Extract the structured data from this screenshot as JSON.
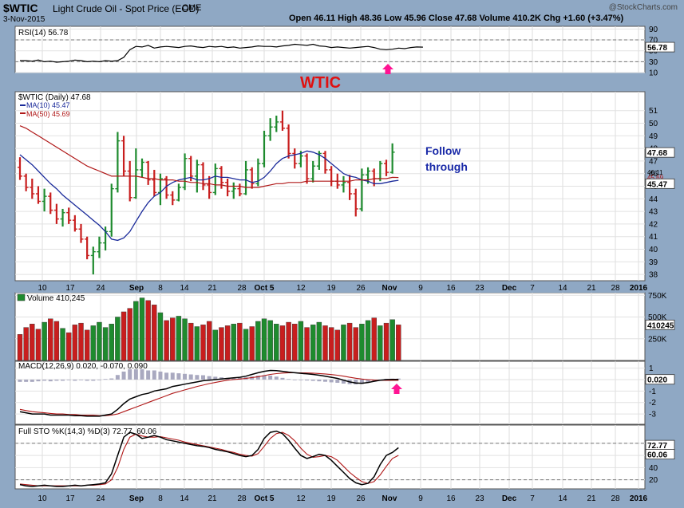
{
  "header": {
    "symbol": "$WTIC",
    "name": "Light Crude Oil - Spot Price (EOD)",
    "exchange": "CME",
    "date": "3-Nov-2015",
    "ohlc_line": "Open 46.11   High 48.36   Low 45.96   Close 47.68   Volume 410.2K   Chg +1.60 (+3.47%)",
    "credit": "@StockCharts.com"
  },
  "colors": {
    "background": "#8fa8c4",
    "panel": "#ffffff",
    "up": "#1e8b2e",
    "down": "#c81e1e",
    "ma10": "#1a2a9a",
    "ma50": "#b01818",
    "annotation_red": "#e01010",
    "annotation_blue": "#1a2aa8",
    "arrow": "#ff1493"
  },
  "annotations": {
    "title": "WTIC",
    "note_line1": "Follow",
    "note_line2": "through"
  },
  "chart_data": [
    {
      "id": "rsi",
      "type": "line",
      "label": "RSI(14) 56.78",
      "ylim": [
        10,
        95
      ],
      "ticks": [
        90,
        70,
        50,
        30,
        10
      ],
      "reference_lines": [
        70,
        30
      ],
      "last_value_label": "56.78",
      "values": [
        32,
        32,
        31,
        33,
        30,
        31,
        29,
        30,
        31,
        33,
        32,
        30,
        31,
        30,
        32,
        31,
        32,
        38,
        52,
        58,
        57,
        60,
        55,
        57,
        58,
        57,
        56,
        58,
        59,
        57,
        56,
        58,
        57,
        58,
        56,
        57,
        55,
        56,
        57,
        59,
        58,
        58,
        57,
        59,
        60,
        62,
        61,
        60,
        62,
        59,
        58,
        56,
        57,
        56,
        55,
        56,
        57,
        58,
        56,
        53,
        52,
        53,
        55,
        54,
        56,
        57,
        56.78
      ]
    },
    {
      "id": "price",
      "type": "ohlc",
      "label": "$WTIC (Daily) 47.68",
      "ylim": [
        37.5,
        52.5
      ],
      "ticks": [
        51,
        50,
        49,
        48,
        47,
        46,
        45,
        44,
        43,
        42,
        41,
        40,
        39,
        38
      ],
      "price_labels": [
        "47.68",
        "46.11",
        "45.69",
        "45.47"
      ],
      "series": [
        {
          "name": "MA(10) 45.47",
          "values": [
            47.5,
            47.1,
            46.7,
            46.2,
            45.7,
            45.2,
            44.8,
            44.3,
            43.9,
            43.5,
            43.1,
            42.7,
            42.3,
            41.9,
            41.4,
            40.8,
            40.7,
            40.9,
            41.4,
            42.2,
            43.0,
            43.7,
            44.2,
            44.5,
            45.0,
            45.3,
            45.5,
            45.6,
            45.7,
            45.5,
            45.5,
            45.6,
            45.8,
            45.7,
            45.7,
            45.6,
            45.5,
            45.5,
            45.3,
            45.4,
            45.7,
            46.2,
            46.8,
            47.2,
            47.4,
            47.5,
            47.6,
            47.8,
            47.7,
            47.5,
            47.2,
            46.8,
            46.4,
            46.0,
            45.8,
            45.7,
            45.5,
            45.4,
            45.2,
            45.2,
            45.3,
            45.4,
            45.47
          ]
        },
        {
          "name": "MA(50) 45.69",
          "values": [
            49.8,
            49.6,
            49.3,
            49.0,
            48.7,
            48.4,
            48.1,
            47.8,
            47.5,
            47.2,
            46.9,
            46.6,
            46.4,
            46.2,
            46.0,
            45.8,
            45.8,
            45.8,
            45.8,
            45.8,
            45.7,
            45.6,
            45.6,
            45.5,
            45.5,
            45.5,
            45.4,
            45.4,
            45.3,
            45.3,
            45.2,
            45.2,
            45.1,
            45.1,
            45.0,
            45.0,
            45.0,
            44.9,
            44.9,
            44.9,
            45.0,
            45.1,
            45.2,
            45.2,
            45.3,
            45.3,
            45.3,
            45.4,
            45.4,
            45.4,
            45.4,
            45.4,
            45.4,
            45.4,
            45.4,
            45.5,
            45.5,
            45.5,
            45.6,
            45.6,
            45.6,
            45.7,
            45.69
          ]
        }
      ],
      "bars": [
        {
          "o": 46.5,
          "h": 47.3,
          "l": 45.5,
          "c": 45.8
        },
        {
          "o": 45.8,
          "h": 46.0,
          "l": 44.6,
          "c": 44.9
        },
        {
          "o": 44.9,
          "h": 45.6,
          "l": 44.0,
          "c": 44.4
        },
        {
          "o": 44.4,
          "h": 45.0,
          "l": 43.6,
          "c": 43.8
        },
        {
          "o": 43.8,
          "h": 44.8,
          "l": 43.0,
          "c": 44.2
        },
        {
          "o": 44.2,
          "h": 44.5,
          "l": 42.8,
          "c": 43.1
        },
        {
          "o": 43.1,
          "h": 43.6,
          "l": 42.0,
          "c": 42.4
        },
        {
          "o": 42.4,
          "h": 43.2,
          "l": 41.8,
          "c": 42.9
        },
        {
          "o": 42.9,
          "h": 43.3,
          "l": 42.0,
          "c": 42.3
        },
        {
          "o": 42.3,
          "h": 42.7,
          "l": 41.4,
          "c": 41.6
        },
        {
          "o": 41.6,
          "h": 42.0,
          "l": 40.5,
          "c": 40.8
        },
        {
          "o": 40.8,
          "h": 41.0,
          "l": 39.2,
          "c": 39.5
        },
        {
          "o": 39.5,
          "h": 40.2,
          "l": 38.0,
          "c": 39.8
        },
        {
          "o": 39.8,
          "h": 41.0,
          "l": 39.3,
          "c": 40.5
        },
        {
          "o": 40.5,
          "h": 41.8,
          "l": 39.9,
          "c": 41.4
        },
        {
          "o": 41.4,
          "h": 45.2,
          "l": 41.0,
          "c": 44.8
        },
        {
          "o": 44.8,
          "h": 49.3,
          "l": 44.5,
          "c": 48.6
        },
        {
          "o": 48.6,
          "h": 49.0,
          "l": 45.8,
          "c": 46.2
        },
        {
          "o": 46.2,
          "h": 47.0,
          "l": 43.8,
          "c": 44.1
        },
        {
          "o": 44.1,
          "h": 48.0,
          "l": 44.0,
          "c": 46.3
        },
        {
          "o": 46.3,
          "h": 47.2,
          "l": 45.7,
          "c": 46.9
        },
        {
          "o": 46.9,
          "h": 47.0,
          "l": 45.1,
          "c": 45.5
        },
        {
          "o": 45.5,
          "h": 46.3,
          "l": 44.2,
          "c": 44.5
        },
        {
          "o": 44.5,
          "h": 46.0,
          "l": 43.5,
          "c": 45.6
        },
        {
          "o": 45.6,
          "h": 45.8,
          "l": 44.0,
          "c": 44.3
        },
        {
          "o": 44.3,
          "h": 44.6,
          "l": 43.5,
          "c": 43.9
        },
        {
          "o": 43.9,
          "h": 45.2,
          "l": 43.8,
          "c": 44.9
        },
        {
          "o": 44.9,
          "h": 47.6,
          "l": 44.7,
          "c": 47.2
        },
        {
          "o": 47.2,
          "h": 47.4,
          "l": 45.4,
          "c": 45.8
        },
        {
          "o": 45.8,
          "h": 47.1,
          "l": 44.5,
          "c": 46.7
        },
        {
          "o": 46.7,
          "h": 46.9,
          "l": 44.7,
          "c": 45.1
        },
        {
          "o": 45.1,
          "h": 45.8,
          "l": 44.0,
          "c": 44.5
        },
        {
          "o": 44.5,
          "h": 46.8,
          "l": 44.3,
          "c": 46.4
        },
        {
          "o": 46.4,
          "h": 46.6,
          "l": 44.8,
          "c": 45.3
        },
        {
          "o": 45.3,
          "h": 45.6,
          "l": 44.2,
          "c": 44.6
        },
        {
          "o": 44.6,
          "h": 45.3,
          "l": 44.0,
          "c": 44.8
        },
        {
          "o": 44.8,
          "h": 45.2,
          "l": 44.2,
          "c": 44.4
        },
        {
          "o": 44.4,
          "h": 47.0,
          "l": 44.3,
          "c": 46.3
        },
        {
          "o": 46.3,
          "h": 46.5,
          "l": 44.8,
          "c": 45.2
        },
        {
          "o": 45.2,
          "h": 47.2,
          "l": 45.0,
          "c": 46.8
        },
        {
          "o": 46.8,
          "h": 49.4,
          "l": 46.5,
          "c": 49.0
        },
        {
          "o": 49.0,
          "h": 50.4,
          "l": 48.6,
          "c": 49.7
        },
        {
          "o": 49.7,
          "h": 50.6,
          "l": 49.3,
          "c": 50.1
        },
        {
          "o": 50.1,
          "h": 51.0,
          "l": 49.4,
          "c": 49.6
        },
        {
          "o": 49.6,
          "h": 49.9,
          "l": 47.2,
          "c": 47.6
        },
        {
          "o": 47.6,
          "h": 48.0,
          "l": 46.4,
          "c": 46.8
        },
        {
          "o": 46.8,
          "h": 47.8,
          "l": 46.5,
          "c": 47.4
        },
        {
          "o": 47.4,
          "h": 47.6,
          "l": 45.2,
          "c": 45.6
        },
        {
          "o": 45.6,
          "h": 47.0,
          "l": 45.3,
          "c": 46.6
        },
        {
          "o": 46.6,
          "h": 47.8,
          "l": 46.3,
          "c": 47.6
        },
        {
          "o": 47.6,
          "h": 47.8,
          "l": 46.0,
          "c": 46.3
        },
        {
          "o": 46.3,
          "h": 46.6,
          "l": 45.0,
          "c": 45.4
        },
        {
          "o": 45.4,
          "h": 46.0,
          "l": 44.8,
          "c": 45.1
        },
        {
          "o": 45.1,
          "h": 45.8,
          "l": 44.5,
          "c": 45.3
        },
        {
          "o": 45.3,
          "h": 45.9,
          "l": 43.9,
          "c": 44.4
        },
        {
          "o": 44.4,
          "h": 44.8,
          "l": 42.6,
          "c": 43.2
        },
        {
          "o": 43.2,
          "h": 46.4,
          "l": 43.0,
          "c": 45.9
        },
        {
          "o": 45.9,
          "h": 46.5,
          "l": 45.2,
          "c": 46.2
        },
        {
          "o": 46.2,
          "h": 46.4,
          "l": 45.0,
          "c": 45.6
        },
        {
          "o": 45.6,
          "h": 47.0,
          "l": 45.4,
          "c": 46.8
        },
        {
          "o": 46.8,
          "h": 47.1,
          "l": 45.8,
          "c": 46.1
        },
        {
          "o": 46.1,
          "h": 48.4,
          "l": 46.0,
          "c": 47.7
        }
      ]
    },
    {
      "id": "volume",
      "type": "bar",
      "label": "Volume 410,245",
      "ylim": [
        0,
        780
      ],
      "ticks": [
        "750K",
        "500K",
        "250K"
      ],
      "last_value_label": "410245",
      "values": [
        300,
        380,
        420,
        360,
        440,
        480,
        450,
        370,
        320,
        410,
        430,
        350,
        400,
        440,
        380,
        420,
        500,
        560,
        600,
        680,
        720,
        690,
        640,
        550,
        460,
        490,
        510,
        480,
        430,
        390,
        410,
        450,
        350,
        380,
        400,
        420,
        430,
        360,
        390,
        450,
        480,
        460,
        420,
        400,
        440,
        420,
        450,
        380,
        410,
        440,
        400,
        380,
        350,
        410,
        430,
        380,
        420,
        460,
        490,
        400,
        430,
        470,
        410
      ]
    },
    {
      "id": "macd",
      "type": "line",
      "label": "MACD(12,26,9) 0.020, -0.070, 0.090",
      "ylim": [
        -3.9,
        1.6
      ],
      "ticks": [
        1,
        0,
        -1,
        -2,
        -3
      ],
      "last_value_label": "0.020",
      "series": [
        {
          "name": "MACD",
          "values": [
            -2.8,
            -2.9,
            -3.0,
            -3.0,
            -3.0,
            -3.1,
            -3.1,
            -3.1,
            -3.1,
            -3.15,
            -3.15,
            -3.2,
            -3.2,
            -3.2,
            -3.1,
            -3.0,
            -2.6,
            -2.1,
            -1.7,
            -1.5,
            -1.3,
            -1.2,
            -1.0,
            -0.9,
            -0.8,
            -0.6,
            -0.5,
            -0.4,
            -0.3,
            -0.2,
            -0.1,
            -0.05,
            0.0,
            0.05,
            0.1,
            0.15,
            0.2,
            0.3,
            0.45,
            0.6,
            0.72,
            0.8,
            0.78,
            0.72,
            0.65,
            0.6,
            0.55,
            0.5,
            0.45,
            0.38,
            0.3,
            0.2,
            0.1,
            -0.05,
            -0.2,
            -0.3,
            -0.32,
            -0.25,
            -0.15,
            -0.05,
            0.0,
            0.01,
            0.02
          ]
        },
        {
          "name": "Signal",
          "values": [
            -2.6,
            -2.7,
            -2.8,
            -2.85,
            -2.9,
            -2.95,
            -3.0,
            -3.0,
            -3.05,
            -3.05,
            -3.1,
            -3.1,
            -3.1,
            -3.15,
            -3.15,
            -3.1,
            -3.0,
            -2.8,
            -2.6,
            -2.4,
            -2.2,
            -2.0,
            -1.8,
            -1.6,
            -1.4,
            -1.2,
            -1.05,
            -0.9,
            -0.75,
            -0.6,
            -0.48,
            -0.35,
            -0.25,
            -0.15,
            -0.05,
            0.0,
            0.05,
            0.1,
            0.18,
            0.25,
            0.35,
            0.45,
            0.52,
            0.57,
            0.6,
            0.6,
            0.59,
            0.58,
            0.56,
            0.53,
            0.49,
            0.44,
            0.38,
            0.3,
            0.2,
            0.12,
            0.05,
            0.0,
            -0.04,
            -0.06,
            -0.07,
            -0.07,
            -0.07
          ]
        }
      ]
    },
    {
      "id": "sto",
      "type": "line",
      "label": "Full STO %K(14,3) %D(3) 72.77, 60.06",
      "ylim": [
        5,
        110
      ],
      "ticks": [
        80,
        60,
        40,
        20
      ],
      "reference_lines": [
        80,
        20
      ],
      "last_value_labels": [
        "72.77",
        "60.06"
      ],
      "series": [
        {
          "name": "%K",
          "values": [
            12,
            10,
            9,
            10,
            11,
            10,
            9,
            9,
            10,
            11,
            10,
            11,
            12,
            13,
            15,
            30,
            60,
            90,
            98,
            95,
            88,
            90,
            93,
            90,
            86,
            84,
            82,
            80,
            78,
            76,
            75,
            73,
            70,
            68,
            66,
            63,
            60,
            58,
            60,
            70,
            88,
            98,
            100,
            96,
            85,
            72,
            60,
            55,
            58,
            62,
            60,
            52,
            42,
            32,
            22,
            15,
            12,
            14,
            25,
            45,
            60,
            65,
            72.77
          ]
        },
        {
          "name": "%D",
          "values": [
            13,
            12,
            11,
            10,
            10,
            10,
            10,
            10,
            10,
            10,
            10,
            11,
            11,
            12,
            13,
            20,
            40,
            70,
            90,
            95,
            92,
            90,
            90,
            91,
            89,
            87,
            85,
            82,
            80,
            78,
            76,
            74,
            72,
            70,
            67,
            65,
            62,
            60,
            59,
            63,
            75,
            88,
            96,
            98,
            93,
            84,
            72,
            62,
            57,
            58,
            60,
            58,
            52,
            42,
            32,
            24,
            17,
            14,
            17,
            28,
            42,
            55,
            60.06
          ]
        }
      ]
    }
  ],
  "x_axis": {
    "labels": [
      {
        "t": "10",
        "bold": false
      },
      {
        "t": "17",
        "bold": false
      },
      {
        "t": "24",
        "bold": false
      },
      {
        "t": "Sep",
        "bold": true
      },
      {
        "t": "8",
        "bold": false
      },
      {
        "t": "14",
        "bold": false
      },
      {
        "t": "21",
        "bold": false
      },
      {
        "t": "28",
        "bold": false
      },
      {
        "t": "Oct 5",
        "bold": true
      },
      {
        "t": "12",
        "bold": false
      },
      {
        "t": "19",
        "bold": false
      },
      {
        "t": "26",
        "bold": false
      },
      {
        "t": "Nov",
        "bold": true
      },
      {
        "t": "9",
        "bold": false
      },
      {
        "t": "16",
        "bold": false
      },
      {
        "t": "23",
        "bold": false
      },
      {
        "t": "Dec",
        "bold": true
      },
      {
        "t": "7",
        "bold": false
      },
      {
        "t": "14",
        "bold": false
      },
      {
        "t": "21",
        "bold": false
      },
      {
        "t": "28",
        "bold": false
      },
      {
        "t": "2016",
        "bold": true
      }
    ]
  }
}
